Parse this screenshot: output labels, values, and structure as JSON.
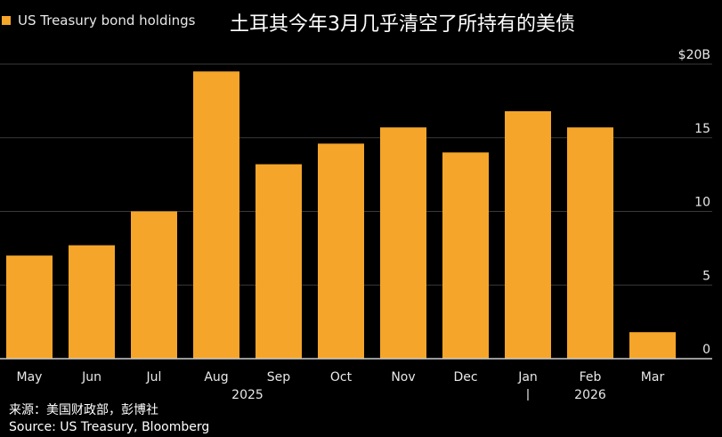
{
  "colors": {
    "background": "#000000",
    "bar": "#f5a52a",
    "grid": "#3a3a3a",
    "text": "#e8e8e8"
  },
  "legend": {
    "label": "US Treasury bond holdings"
  },
  "title": "土耳其今年3月几乎清空了所持有的美债",
  "footer": {
    "source_cn": "来源：美国财政部，彭博社",
    "source_en": "Source: US Treasury, Bloomberg"
  },
  "chart_data": {
    "type": "bar",
    "categories": [
      "May",
      "Jun",
      "Jul",
      "Aug",
      "Sep",
      "Oct",
      "Nov",
      "Dec",
      "Jan",
      "Feb",
      "Mar"
    ],
    "series": [
      {
        "name": "US Treasury bond holdings",
        "values": [
          7.0,
          7.7,
          10.0,
          19.5,
          13.2,
          14.6,
          15.7,
          14.0,
          16.8,
          15.7,
          1.8
        ]
      }
    ],
    "year_labels": [
      {
        "label": "2025",
        "under": [
          "May",
          "Jun",
          "Jul",
          "Aug",
          "Sep",
          "Oct",
          "Nov",
          "Dec"
        ]
      },
      {
        "label": "2026",
        "under": [
          "Jan",
          "Feb",
          "Mar"
        ]
      }
    ],
    "year_separator": "|",
    "y_ticks": [
      0,
      5,
      10,
      15,
      20
    ],
    "y_tick_labels": [
      "0",
      "5",
      "10",
      "15",
      "$20B"
    ],
    "ylim": [
      0,
      20
    ],
    "grid": true,
    "y_axis_side": "right",
    "legend_position": "top-left"
  }
}
